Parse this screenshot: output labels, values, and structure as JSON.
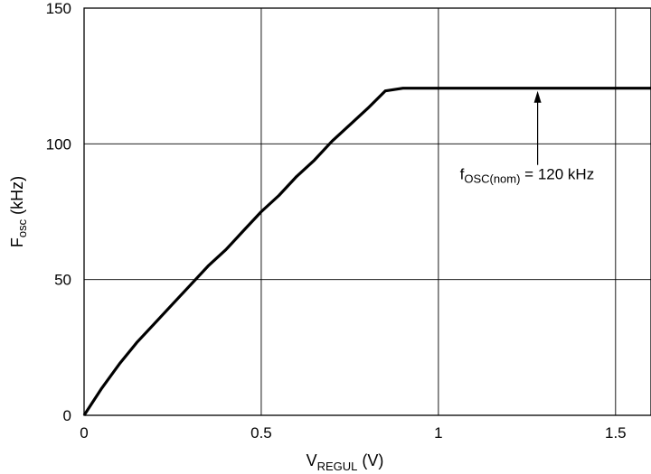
{
  "chart_data": {
    "type": "line",
    "xlabel": "V",
    "xlabel_sub": "REGUL",
    "xlabel_unit": " (V)",
    "ylabel": "F",
    "ylabel_sub": "osc",
    "ylabel_unit": " (kHz)",
    "xlim": [
      0,
      1.6
    ],
    "ylim": [
      0,
      150
    ],
    "x_ticks": [
      0,
      0.5,
      1,
      1.5
    ],
    "x_tick_labels": [
      "0",
      "0.5",
      "1",
      "1.5"
    ],
    "y_ticks": [
      0,
      50,
      100,
      150
    ],
    "y_tick_labels": [
      "0",
      "50",
      "100",
      "150"
    ],
    "grid": true,
    "series": [
      {
        "x": [
          0,
          0.05,
          0.1,
          0.15,
          0.2,
          0.25,
          0.3,
          0.35,
          0.4,
          0.45,
          0.5,
          0.55,
          0.6,
          0.65,
          0.7,
          0.75,
          0.8,
          0.85,
          0.9,
          1.0,
          1.2,
          1.4,
          1.6
        ],
        "y": [
          0,
          10,
          19,
          27,
          34,
          41,
          48,
          55,
          61,
          68,
          75,
          81,
          88,
          94,
          101,
          107,
          113,
          119.5,
          120.5,
          120.5,
          120.5,
          120.5,
          120.5
        ]
      }
    ],
    "annotation": {
      "text_main": "f",
      "text_sub": "OSC(nom)",
      "text_rest": " = 120 kHz",
      "arrow_x": 1.28,
      "arrow_y": 120.5
    }
  }
}
